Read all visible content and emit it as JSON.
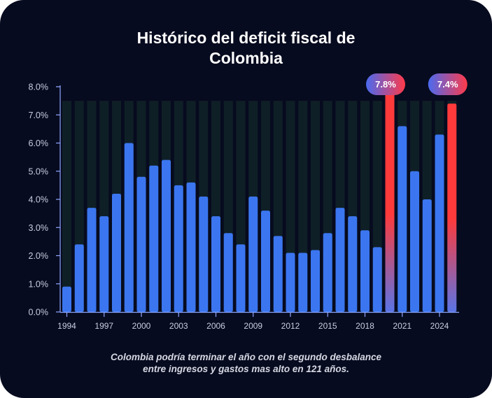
{
  "title_lines": [
    "Histórico del deficit fiscal de",
    "Colombia"
  ],
  "caption_lines": [
    "Colombia podría terminar el año con el segundo desbalance",
    "entre ingresos y gastos mas alto en 121 años."
  ],
  "colors": {
    "background": "#070b1f",
    "bar": "#3b76f0",
    "bar_highlight_top": "#ff3a3a",
    "bar_highlight_bottom": "#5a74e6",
    "track": "#0f1f26",
    "axis": "#8ea6ff",
    "tick_text": "#c9cde0",
    "badge_left": "#4a6af0",
    "badge_right": "#ff3a4a"
  },
  "chart_data": {
    "type": "bar",
    "title": "Histórico del deficit fiscal de Colombia",
    "xlabel": "",
    "ylabel": "",
    "ylim": [
      0,
      8
    ],
    "grid": false,
    "yticks": [
      "0.0%",
      "1.0%",
      "2.0%",
      "3.0%",
      "4.0%",
      "5.0%",
      "6.0%",
      "7.0%",
      "8.0%"
    ],
    "xtick_labels": [
      "1994",
      "1997",
      "2000",
      "2003",
      "2006",
      "2009",
      "2012",
      "2015",
      "2018",
      "2021",
      "2024"
    ],
    "categories": [
      "1994",
      "1995",
      "1996",
      "1997",
      "1998",
      "1999",
      "2000",
      "2001",
      "2002",
      "2003",
      "2004",
      "2005",
      "2006",
      "2007",
      "2008",
      "2009",
      "2010",
      "2011",
      "2012",
      "2013",
      "2014",
      "2015",
      "2016",
      "2017",
      "2018",
      "2019",
      "2020",
      "2021",
      "2022",
      "2023",
      "2024",
      "2025"
    ],
    "values": [
      0.9,
      2.4,
      3.7,
      3.4,
      4.2,
      6.0,
      4.8,
      5.2,
      5.4,
      4.5,
      4.6,
      4.1,
      3.4,
      2.8,
      2.4,
      4.1,
      3.6,
      2.7,
      2.1,
      2.1,
      2.2,
      2.8,
      3.7,
      3.4,
      2.9,
      2.3,
      7.8,
      6.6,
      5.0,
      4.0,
      6.3,
      7.4
    ],
    "highlights": [
      {
        "category": "2020",
        "label": "7.8%"
      },
      {
        "category": "2025",
        "label": "7.4%"
      }
    ]
  }
}
